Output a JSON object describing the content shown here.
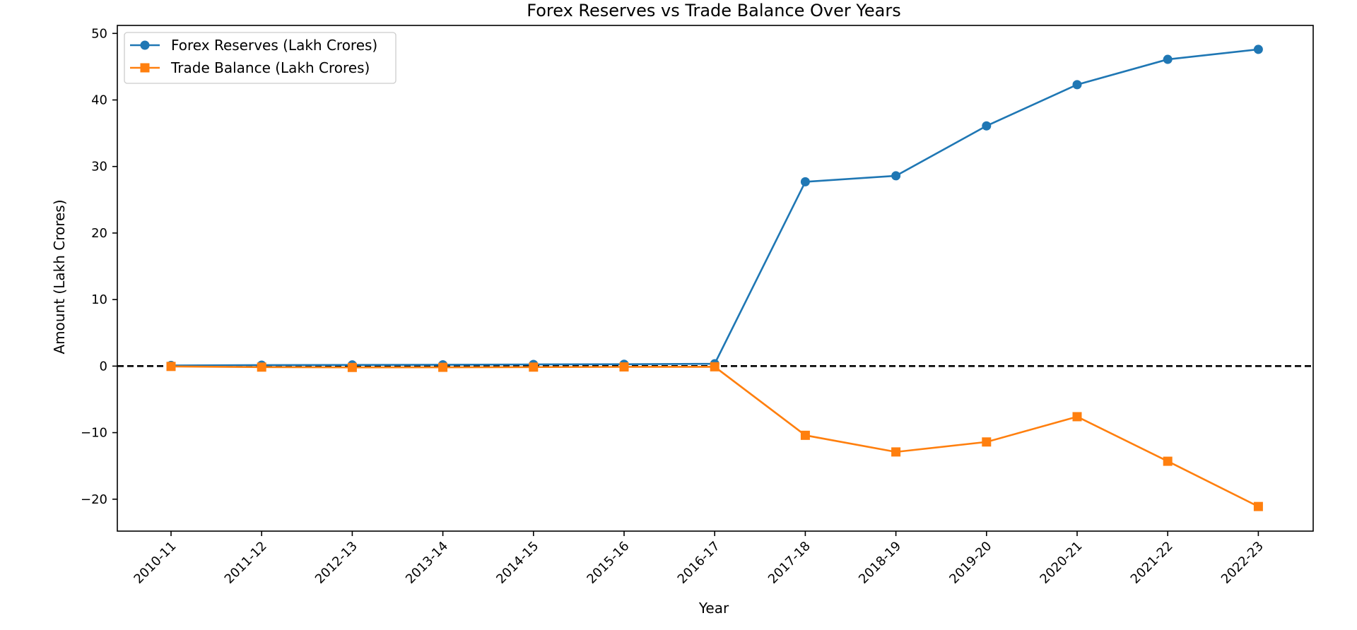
{
  "chart_data": {
    "type": "line",
    "title": "Forex Reserves vs Trade Balance Over Years",
    "xlabel": "Year",
    "ylabel": "Amount (Lakh Crores)",
    "categories": [
      "2010-11",
      "2011-12",
      "2012-13",
      "2013-14",
      "2014-15",
      "2015-16",
      "2016-17",
      "2017-18",
      "2018-19",
      "2019-20",
      "2020-21",
      "2021-22",
      "2022-23"
    ],
    "ylim": [
      -24.8,
      51.2
    ],
    "yticks": [
      -20,
      -10,
      0,
      10,
      20,
      30,
      40,
      50
    ],
    "ytick_labels": [
      "−20",
      "−10",
      "0",
      "10",
      "20",
      "30",
      "40",
      "50"
    ],
    "reference_line": {
      "y": 0,
      "style": "dashed",
      "color": "#000000"
    },
    "legend_position": "upper-left",
    "grid": false,
    "series": [
      {
        "name": "Forex Reserves (Lakh Crores)",
        "color": "#1f77b4",
        "marker": "circle",
        "values": [
          0.1,
          0.15,
          0.18,
          0.2,
          0.25,
          0.28,
          0.35,
          27.7,
          28.6,
          36.1,
          42.3,
          46.1,
          47.6
        ]
      },
      {
        "name": "Trade Balance (Lakh Crores)",
        "color": "#ff7f0e",
        "marker": "square",
        "values": [
          -0.05,
          -0.15,
          -0.2,
          -0.18,
          -0.15,
          -0.12,
          -0.1,
          -10.4,
          -12.9,
          -11.4,
          -7.6,
          -14.3,
          -21.1
        ]
      }
    ]
  }
}
